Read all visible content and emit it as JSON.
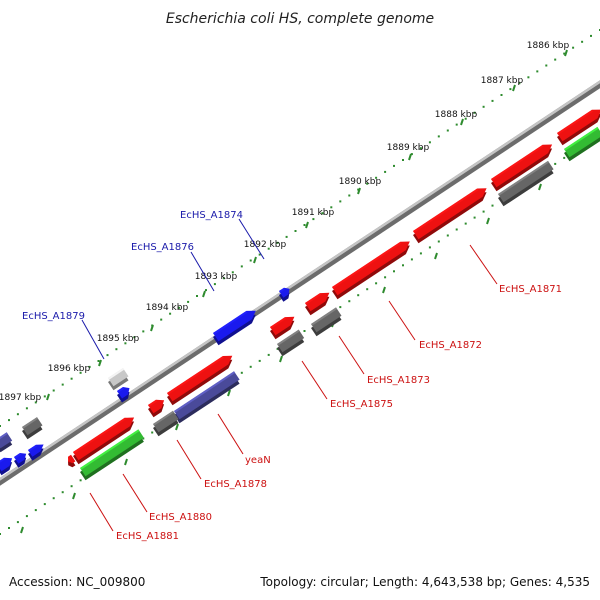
{
  "title": "Escherichia coli HS, complete genome",
  "footer": {
    "accession": "Accession: NC_009800",
    "topology": "Topology: circular; Length: 4,643,538 bp; Genes: 4,535"
  },
  "colors": {
    "backbone": "#8a8a8a",
    "scale_dots": "#2e8b2e",
    "red_gene": "#ee1111",
    "blue_gene": "#1a1aee",
    "dark_purple_gene": "#4a4a9a",
    "gray_gene": "#666666",
    "light_gray_gene": "#c8c8c8",
    "green_gene": "#33bb33",
    "label_blue": "#1a1aaa",
    "label_red": "#cc1111"
  },
  "scale_ticks": [
    {
      "label": "1886 kbp"
    },
    {
      "label": "1887 kbp"
    },
    {
      "label": "1888 kbp"
    },
    {
      "label": "1889 kbp"
    },
    {
      "label": "1890 kbp"
    },
    {
      "label": "1891 kbp"
    },
    {
      "label": "1892 kbp"
    },
    {
      "label": "1893 kbp"
    },
    {
      "label": "1894 kbp"
    },
    {
      "label": "1895 kbp"
    },
    {
      "label": "1896 kbp"
    },
    {
      "label": "1897 kbp"
    }
  ],
  "gene_labels": [
    {
      "text": "EcHS_A1874",
      "color": "blue"
    },
    {
      "text": "EcHS_A1876",
      "color": "blue"
    },
    {
      "text": "EcHS_A1879",
      "color": "blue"
    },
    {
      "text": "EcHS_A1871",
      "color": "red"
    },
    {
      "text": "EcHS_A1872",
      "color": "red"
    },
    {
      "text": "EcHS_A1873",
      "color": "red"
    },
    {
      "text": "EcHS_A1875",
      "color": "red"
    },
    {
      "text": "yeaN",
      "color": "red"
    },
    {
      "text": "EcHS_A1878",
      "color": "red"
    },
    {
      "text": "EcHS_A1880",
      "color": "red"
    },
    {
      "text": "EcHS_A1881",
      "color": "red"
    }
  ]
}
